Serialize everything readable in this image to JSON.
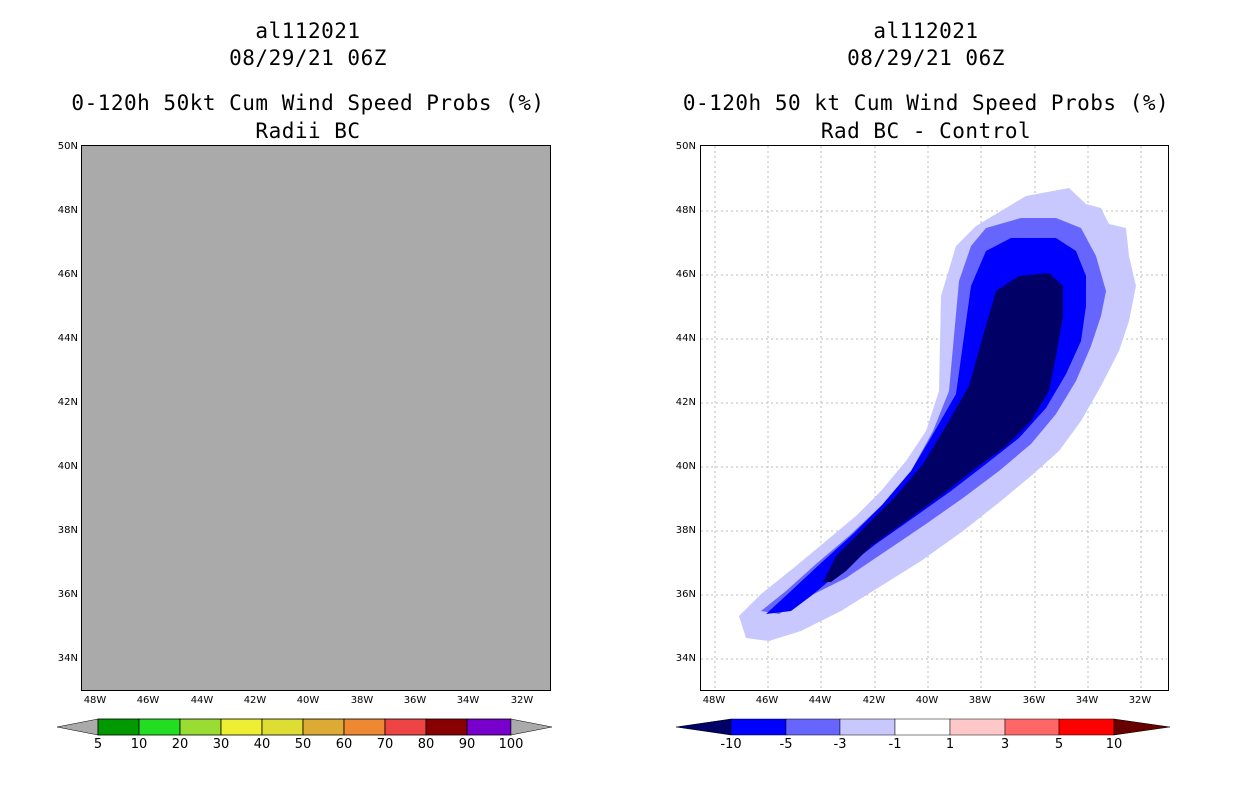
{
  "left": {
    "title_lines": [
      "al112021",
      "08/29/21 06Z",
      "0-120h 50kt Cum Wind Speed Probs (%)",
      "Radii BC"
    ],
    "fill_color": "#aaaaaa",
    "colorbar": {
      "labels": [
        "5",
        "10",
        "20",
        "30",
        "40",
        "50",
        "60",
        "70",
        "80",
        "90",
        "100"
      ],
      "colors": [
        "#009900",
        "#22dd22",
        "#99dd33",
        "#eeee33",
        "#dddd33",
        "#ddaa33",
        "#ee8833",
        "#ee4444",
        "#880000",
        "#7700cc"
      ],
      "end_color": "#aaaaaa"
    }
  },
  "right": {
    "title_lines": [
      "al112021",
      "08/29/21 06Z",
      "0-120h 50 kt Cum Wind Speed Probs (%)",
      "Rad BC - Control"
    ],
    "colorbar": {
      "labels": [
        "-10",
        "-5",
        "-3",
        "-1",
        "1",
        "3",
        "5",
        "10"
      ],
      "colors": [
        "#0000ff",
        "#6666ff",
        "#c8c8ff",
        "#ffffff",
        "#ffc8c8",
        "#ff6666",
        "#ff0000"
      ],
      "low_color": "#000066",
      "high_color": "#660000"
    },
    "contour_colors": [
      "#c8c8ff",
      "#6666ff",
      "#0000ff",
      "#000066"
    ]
  },
  "axes": {
    "lat_labels": [
      "50N",
      "48N",
      "46N",
      "44N",
      "42N",
      "40N",
      "38N",
      "36N",
      "34N"
    ],
    "lon_labels": [
      "48W",
      "46W",
      "44W",
      "42W",
      "40W",
      "38W",
      "36W",
      "34W",
      "32W"
    ]
  }
}
